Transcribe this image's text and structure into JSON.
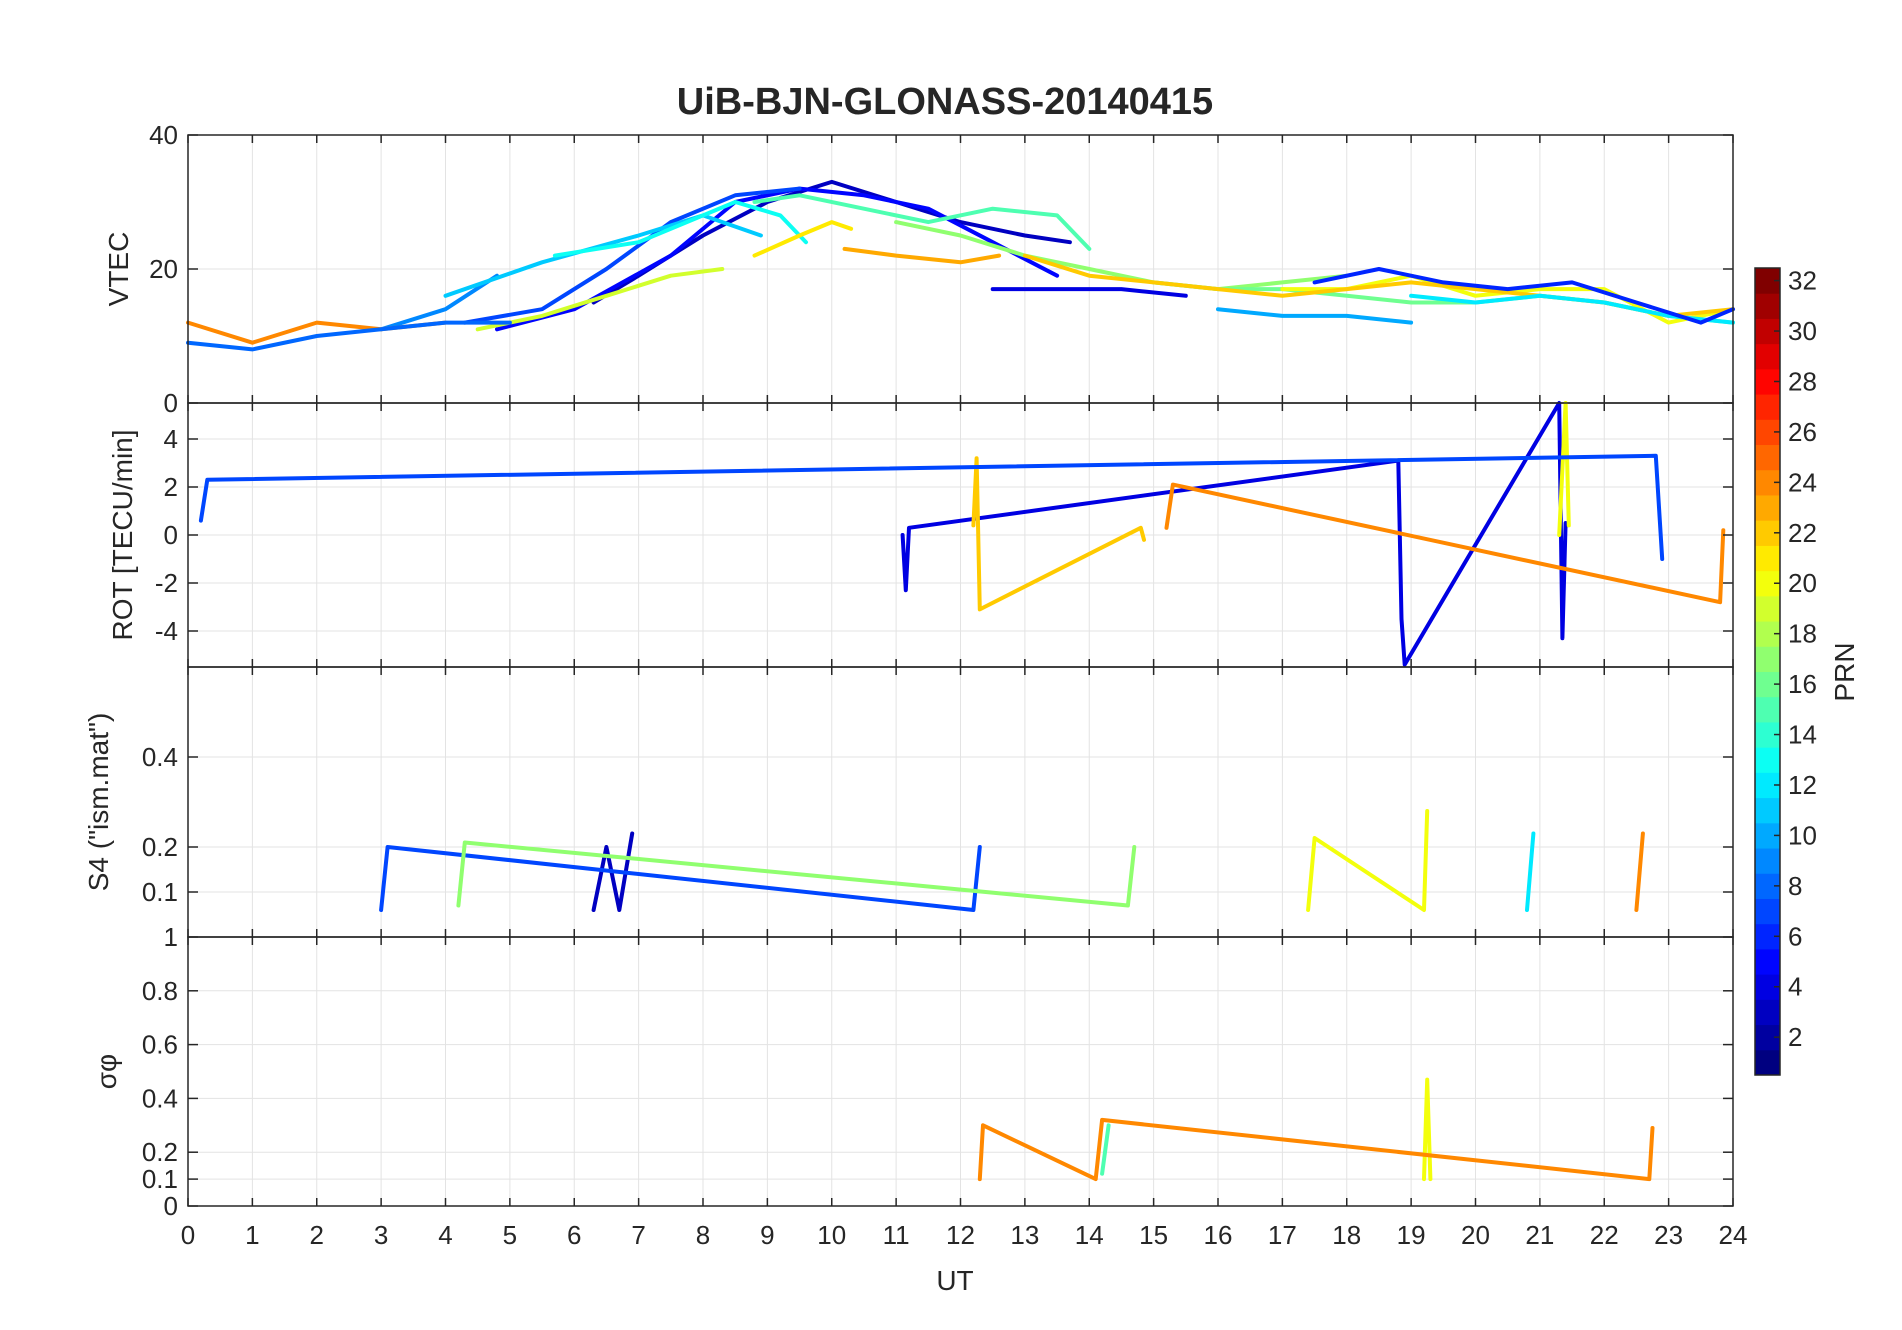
{
  "figure": {
    "title": "UiB-BJN-GLONASS-20140415",
    "xlabel": "UT",
    "x_ticks": [
      0,
      1,
      2,
      3,
      4,
      5,
      6,
      7,
      8,
      9,
      10,
      11,
      12,
      13,
      14,
      15,
      16,
      17,
      18,
      19,
      20,
      21,
      22,
      23,
      24
    ],
    "xlim": [
      0,
      24
    ],
    "colorbar": {
      "label": "PRN",
      "range": [
        1,
        32
      ],
      "ticks": [
        2,
        4,
        6,
        8,
        10,
        12,
        14,
        16,
        18,
        20,
        22,
        24,
        26,
        28,
        30,
        32
      ],
      "colormap": "jet"
    }
  },
  "chart_data": [
    {
      "type": "line",
      "panel": "vtec",
      "title": "UiB-BJN-GLONASS-20140415",
      "ylabel": "VTEC",
      "ylim": [
        0,
        40
      ],
      "yticks": [
        0,
        20,
        40
      ],
      "xlim": [
        0,
        24
      ],
      "grid": true,
      "series": [
        {
          "name": "3",
          "x": [
            6.3,
            7.0,
            8.0,
            9.0,
            10.0,
            11.0,
            12.0,
            13.0,
            13.7
          ],
          "y": [
            15,
            19,
            25,
            30,
            33,
            30,
            27,
            25,
            24
          ]
        },
        {
          "name": "5",
          "x": [
            4.8,
            6.0,
            7.5,
            8.5,
            9.5,
            10.5,
            11.5,
            12.5,
            13.5
          ],
          "y": [
            11,
            14,
            22,
            30,
            32,
            31,
            29,
            24,
            19
          ]
        },
        {
          "name": "7",
          "x": [
            4.3,
            5.5,
            6.5,
            7.5,
            8.5,
            9.5
          ],
          "y": [
            12,
            14,
            20,
            27,
            31,
            32
          ]
        },
        {
          "name": "9",
          "x": [
            3.0,
            4.0,
            4.8
          ],
          "y": [
            11,
            14,
            19
          ]
        },
        {
          "name": "11",
          "x": [
            4.0,
            5.5,
            7.0,
            8.0,
            8.9
          ],
          "y": [
            16,
            21,
            25,
            28,
            25
          ]
        },
        {
          "name": "13",
          "x": [
            5.7,
            7.0,
            8.5,
            9.2,
            9.6
          ],
          "y": [
            22,
            24,
            30,
            28,
            24
          ]
        },
        {
          "name": "15",
          "x": [
            8.8,
            9.5,
            10.5,
            11.5,
            12.5,
            13.5,
            14.0
          ],
          "y": [
            30,
            31,
            29,
            27,
            29,
            28,
            23
          ]
        },
        {
          "name": "17",
          "x": [
            11.0,
            12.0,
            13.0,
            14.0,
            15.0,
            16.0,
            17.0,
            18.0
          ],
          "y": [
            27,
            25,
            22,
            20,
            18,
            17,
            18,
            19
          ]
        },
        {
          "name": "19",
          "x": [
            4.5,
            5.5,
            6.5,
            7.5,
            8.3
          ],
          "y": [
            11,
            13,
            16,
            19,
            20
          ]
        },
        {
          "name": "21",
          "x": [
            8.8,
            9.5,
            10.0,
            10.3
          ],
          "y": [
            22,
            25,
            27,
            26
          ]
        },
        {
          "name": "23",
          "x": [
            10.2,
            11.0,
            12.0,
            12.6
          ],
          "y": [
            23,
            22,
            21,
            22
          ]
        },
        {
          "name": "24",
          "x": [
            0,
            1,
            2,
            3,
            4.0
          ],
          "y": [
            12,
            9,
            12,
            11,
            12
          ]
        },
        {
          "name": "8",
          "x": [
            0,
            1,
            2,
            3,
            4,
            5
          ],
          "y": [
            9,
            8,
            10,
            11,
            12,
            12
          ]
        },
        {
          "name": "16",
          "x": [
            15,
            16,
            17,
            18,
            19,
            20,
            21,
            22,
            23,
            24
          ],
          "y": [
            18,
            17,
            17,
            16,
            15,
            15,
            16,
            15,
            13,
            12
          ]
        },
        {
          "name": "20",
          "x": [
            17,
            18,
            19,
            20,
            21,
            22,
            23,
            24
          ],
          "y": [
            17,
            17,
            19,
            16,
            17,
            17,
            12,
            14
          ]
        },
        {
          "name": "22",
          "x": [
            13,
            14,
            15,
            16,
            17,
            18,
            19,
            20,
            21,
            22,
            23,
            24
          ],
          "y": [
            22,
            19,
            18,
            17,
            16,
            17,
            18,
            17,
            16,
            15,
            13,
            14
          ]
        },
        {
          "name": "10",
          "x": [
            16,
            17,
            18,
            19
          ],
          "y": [
            14,
            13,
            13,
            12
          ]
        },
        {
          "name": "12",
          "x": [
            19,
            20,
            21,
            22,
            23,
            24
          ],
          "y": [
            16,
            15,
            16,
            15,
            13,
            12
          ]
        },
        {
          "name": "4",
          "x": [
            12.5,
            13.5,
            14.5,
            15.5
          ],
          "y": [
            17,
            17,
            17,
            16
          ]
        },
        {
          "name": "6",
          "x": [
            17.5,
            18.5,
            19.5,
            20.5,
            21.5,
            22.5,
            23.5,
            24
          ],
          "y": [
            18,
            20,
            18,
            17,
            18,
            15,
            12,
            14
          ]
        }
      ]
    },
    {
      "type": "line",
      "panel": "rot",
      "ylabel": "ROT [TECU/min]",
      "ylim": [
        -5.5,
        5.5
      ],
      "yticks": [
        -4,
        -2,
        0,
        2,
        4
      ],
      "xlim": [
        0,
        24
      ],
      "grid": true,
      "series": [
        {
          "name": "4",
          "x": [
            11.1,
            11.15,
            11.2,
            18.8,
            18.85,
            18.9,
            21.3,
            21.35,
            21.4
          ],
          "y": [
            0,
            -2.3,
            0.3,
            3.1,
            -3.5,
            -5.4,
            5.5,
            -4.3,
            0.5
          ]
        },
        {
          "name": "20",
          "x": [
            21.3,
            21.4,
            21.45
          ],
          "y": [
            0,
            5.5,
            0.4
          ]
        },
        {
          "name": "22",
          "x": [
            12.2,
            12.25,
            12.3,
            14.8,
            14.85
          ],
          "y": [
            0.4,
            3.2,
            -3.1,
            0.3,
            -0.2
          ]
        },
        {
          "name": "24",
          "x": [
            15.2,
            15.3,
            23.8,
            23.85
          ],
          "y": [
            0.3,
            2.1,
            -2.8,
            0.2
          ]
        },
        {
          "name": "7",
          "x": [
            0.2,
            0.3,
            22.8,
            22.9
          ],
          "y": [
            0.6,
            2.3,
            3.3,
            -1.0
          ]
        }
      ]
    },
    {
      "type": "line",
      "panel": "s4",
      "ylabel": "S4 (\"ism.mat\")",
      "ylim": [
        0,
        0.6
      ],
      "yticks": [
        0.1,
        0.2,
        0.4
      ],
      "xlim": [
        0,
        24
      ],
      "grid": true,
      "series": [
        {
          "name": "3",
          "x": [
            6.3,
            6.5,
            6.7,
            6.9
          ],
          "y": [
            0.06,
            0.2,
            0.06,
            0.23
          ]
        },
        {
          "name": "7",
          "x": [
            3.0,
            3.1,
            12.2,
            12.3
          ],
          "y": [
            0.06,
            0.2,
            0.06,
            0.2
          ]
        },
        {
          "name": "20",
          "x": [
            17.4,
            17.5,
            19.2,
            19.25
          ],
          "y": [
            0.06,
            0.22,
            0.06,
            0.28
          ]
        },
        {
          "name": "12",
          "x": [
            20.8,
            20.9
          ],
          "y": [
            0.06,
            0.23
          ]
        },
        {
          "name": "24",
          "x": [
            22.5,
            22.6
          ],
          "y": [
            0.06,
            0.23
          ]
        },
        {
          "name": "17",
          "x": [
            4.2,
            4.3,
            14.6,
            14.7
          ],
          "y": [
            0.07,
            0.21,
            0.07,
            0.2
          ]
        }
      ]
    },
    {
      "type": "line",
      "panel": "sigma_phi",
      "ylabel": "σφ",
      "ylim": [
        0,
        1
      ],
      "yticks": [
        0,
        0.1,
        0.2,
        0.4,
        0.6,
        0.8,
        1
      ],
      "xlim": [
        0,
        24
      ],
      "grid": true,
      "series": [
        {
          "name": "20",
          "x": [
            19.2,
            19.25,
            19.3
          ],
          "y": [
            0.1,
            0.47,
            0.1
          ]
        },
        {
          "name": "24",
          "x": [
            12.3,
            12.35,
            14.1,
            14.2,
            22.7,
            22.75
          ],
          "y": [
            0.1,
            0.3,
            0.1,
            0.32,
            0.1,
            0.29
          ]
        },
        {
          "name": "15",
          "x": [
            14.2,
            14.3
          ],
          "y": [
            0.12,
            0.3
          ]
        }
      ]
    }
  ]
}
